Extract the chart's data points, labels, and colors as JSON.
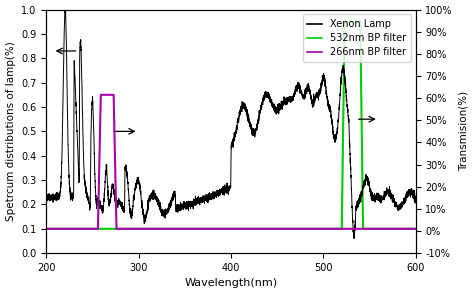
{
  "xlabel": "Wavelength(nm)",
  "ylabel_left": "Spetrcum distributions of lamp(%)",
  "ylabel_right": "Transmision(%)",
  "xlim": [
    200,
    600
  ],
  "ylim_left": [
    0.0,
    1.0
  ],
  "ylim_right": [
    -0.1,
    1.0
  ],
  "yticks_left": [
    0.0,
    0.1,
    0.2,
    0.3,
    0.4,
    0.5,
    0.6,
    0.7,
    0.8,
    0.9,
    1.0
  ],
  "yticks_right_vals": [
    -0.1,
    0.0,
    0.1,
    0.2,
    0.3,
    0.4,
    0.5,
    0.6,
    0.7,
    0.8,
    0.9,
    1.0
  ],
  "yticks_right_labels": [
    "-10%",
    "0%",
    "10%",
    "20%",
    "30%",
    "40%",
    "50%",
    "60%",
    "70%",
    "80%",
    "90%",
    "100%"
  ],
  "xenon_color": "#000000",
  "filter532_color": "#00cc00",
  "filter266_color": "#aa00aa",
  "legend_entries": [
    "Xenon Lamp",
    "532nm BP filter",
    "266nm BP filter"
  ],
  "figsize": [
    4.74,
    2.94
  ],
  "dpi": 100
}
